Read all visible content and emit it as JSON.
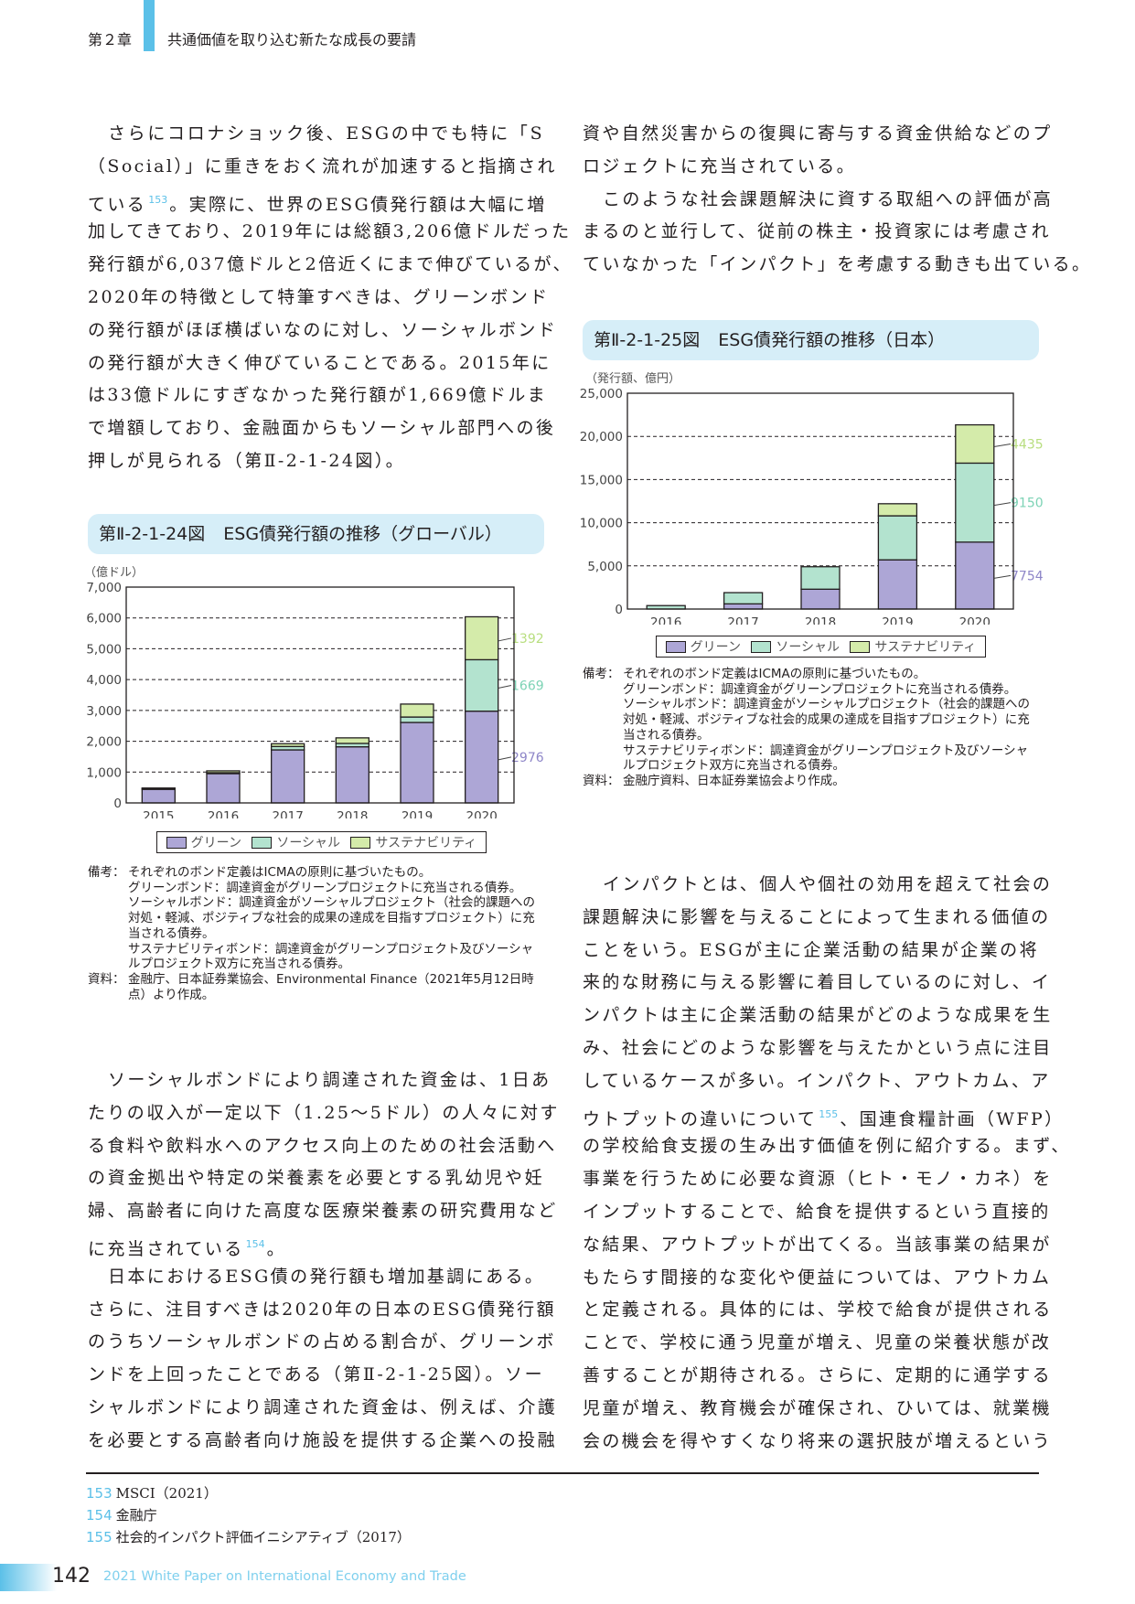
{
  "header": {
    "chapter": "第２章",
    "title": "共通価値を取り込む新たな成長の要請"
  },
  "colors": {
    "green": "#ada6d6",
    "social": "#b3e3cf",
    "sustainability": "#d4ebaa",
    "green_label": "#8e86c8",
    "social_label": "#7dd3b5",
    "sust_label": "#b8de7f",
    "accent": "#5bc0e8",
    "title_bg": "#d6eef8"
  },
  "body": {
    "left_top": [
      {
        "lines": [
          "さらにコロナショック後、ESGの中でも特に「S",
          "（Social）」に重きをおく流れが加速すると指摘され",
          {
            "pre": "ている",
            "sup": "153",
            "post": "。実際に、世界のESG債発行額は大幅に増"
          },
          "加してきており、2019年には総額3,206億ドルだった",
          "発行額が6,037億ドルと2倍近くにまで伸びているが、",
          "2020年の特徴として特筆すべきは、グリーンボンド",
          "の発行額がほぼ横ばいなのに対し、ソーシャルボンド",
          "の発行額が大きく伸びていることである。2015年に",
          "は33億ドルにすぎなかった発行額が1,669億ドルま",
          "で増額しており、金融面からもソーシャル部門への後",
          "押しが見られる（第Ⅱ-2-1-24図）。"
        ],
        "indent": true,
        "ends": true
      }
    ],
    "left_bottom": [
      {
        "lines": [
          "ソーシャルボンドにより調達された資金は、1日あ",
          "たりの収入が一定以下（1.25〜5ドル）の人々に対す",
          "る食料や飲料水へのアクセス向上のための社会活動へ",
          "の資金拠出や特定の栄養素を必要とする乳幼児や妊",
          "婦、高齢者に向けた高度な医療栄養素の研究費用など",
          {
            "pre": "に充当されている",
            "sup": "154",
            "post": "。"
          }
        ],
        "indent": true,
        "ends": true
      },
      {
        "lines": [
          "日本におけるESG債の発行額も増加基調にある。",
          "さらに、注目すべきは2020年の日本のESG債発行額",
          "のうちソーシャルボンドの占める割合が、グリーンボ",
          "ンドを上回ったことである（第Ⅱ-2-1-25図）。ソー",
          "シャルボンドにより調達された資金は、例えば、介護",
          "を必要とする高齢者向け施設を提供する企業への投融"
        ],
        "indent": true,
        "ends": false
      }
    ],
    "right_top": [
      {
        "lines": [
          "資や自然災害からの復興に寄与する資金供給などのプ",
          "ロジェクトに充当されている。"
        ],
        "indent": false,
        "ends": true
      },
      {
        "lines": [
          "このような社会課題解決に資する取組への評価が高",
          "まるのと並行して、従前の株主・投資家には考慮され",
          "ていなかった「インパクト」を考慮する動きも出ている。"
        ],
        "indent": true,
        "ends": false
      }
    ],
    "right_bottom": [
      {
        "lines": [
          "インパクトとは、個人や個社の効用を超えて社会の",
          "課題解決に影響を与えることによって生まれる価値の",
          "ことをいう。ESGが主に企業活動の結果が企業の将",
          "来的な財務に与える影響に着目しているのに対し、イ",
          "ンパクトは主に企業活動の結果がどのような成果を生",
          "み、社会にどのような影響を与えたかという点に注目",
          "しているケースが多い。インパクト、アウトカム、ア",
          {
            "pre": "ウトプットの違いについて",
            "sup": "155",
            "post": "、国連食糧計画（WFP）"
          },
          "の学校給食支援の生み出す価値を例に紹介する。まず、",
          "事業を行うために必要な資源（ヒト・モノ・カネ）を",
          "インプットすることで、給食を提供するという直接的",
          "な結果、アウトプットが出てくる。当該事業の結果が",
          "もたらす間接的な変化や便益については、アウトカム",
          "と定義される。具体的には、学校で給食が提供される",
          "ことで、学校に通う児童が増え、児童の栄養状態が改",
          "善することが期待される。さらに、定期的に通学する",
          "児童が増え、教育機会が確保され、ひいては、就業機",
          "会の機会を得やすくなり将来の選択肢が増えるという"
        ],
        "indent": true,
        "ends": false
      }
    ]
  },
  "fig24": {
    "number": "第Ⅱ-2-1-24図",
    "title": "ESG債発行額の推移（グローバル）",
    "notes_label": "備考：",
    "notes": [
      "それぞれのボンド定義はICMAの原則に基づいたもの。",
      "グリーンボンド：調達資金がグリーンプロジェクトに充当される債券。",
      "ソーシャルボンド：調達資金がソーシャルプロジェクト（社会的課題への対処・軽減、ポジティブな社会的成果の達成を目指すプロジェクト）に充当される債券。",
      "サステナビリティボンド：調達資金がグリーンプロジェクト及びソーシャルプロジェクト双方に充当される債券。"
    ],
    "source_label": "資料：",
    "source": "金融庁、日本証券業協会、Environmental Finance（2021年5月12日時点）より作成。"
  },
  "fig25": {
    "number": "第Ⅱ-2-1-25図",
    "title": "ESG債発行額の推移（日本）",
    "notes_label": "備考：",
    "notes": [
      "それぞれのボンド定義はICMAの原則に基づいたもの。",
      "グリーンボンド：調達資金がグリーンプロジェクトに充当される債券。",
      "ソーシャルボンド：調達資金がソーシャルプロジェクト（社会的課題への対処・軽減、ポジティブな社会的成果の達成を目指すプロジェクト）に充当される債券。",
      "サステナビリティボンド：調達資金がグリーンプロジェクト及びソーシャルプロジェクト双方に充当される債券。"
    ],
    "source_label": "資料：",
    "source": "金融庁資料、日本証券業協会より作成。"
  },
  "chart_data": [
    {
      "type": "bar",
      "stacked": true,
      "title": "ESG債発行額の推移（グローバル）",
      "ylabel": "（億ドル）",
      "xlabel": "",
      "ylim": [
        0,
        7000
      ],
      "yticks": [
        0,
        1000,
        2000,
        3000,
        4000,
        5000,
        6000,
        7000
      ],
      "ytick_labels": [
        "0",
        "1,000",
        "2,000",
        "3,000",
        "4,000",
        "5,000",
        "6,000",
        "7,000"
      ],
      "grid": "dashed horizontal",
      "categories": [
        "2015",
        "2016",
        "2017",
        "2018",
        "2019",
        "2020"
      ],
      "series": [
        {
          "name": "グリーン",
          "values": [
            440,
            950,
            1720,
            1820,
            2610,
            2976
          ]
        },
        {
          "name": "ソーシャル",
          "values": [
            33,
            30,
            110,
            110,
            176,
            1669
          ]
        },
        {
          "name": "サステナビリティ",
          "values": [
            10,
            60,
            90,
            180,
            420,
            1392
          ]
        }
      ],
      "data_labels": [
        "2976",
        "1669",
        "1392"
      ],
      "legend": "bottom"
    },
    {
      "type": "bar",
      "stacked": true,
      "title": "ESG債発行額の推移（日本）",
      "ylabel": "（発行額、億円）",
      "xlabel": "",
      "ylim": [
        0,
        25000
      ],
      "yticks": [
        0,
        5000,
        10000,
        15000,
        20000,
        25000
      ],
      "ytick_labels": [
        "0",
        "5,000",
        "10,000",
        "15,000",
        "20,000",
        "25,000"
      ],
      "grid": "dashed horizontal",
      "categories": [
        "2016",
        "2017",
        "2018",
        "2019",
        "2020"
      ],
      "series": [
        {
          "name": "グリーン",
          "values": [
            0,
            600,
            2300,
            5700,
            7754
          ]
        },
        {
          "name": "ソーシャル",
          "values": [
            400,
            1300,
            2600,
            5100,
            9150
          ]
        },
        {
          "name": "サステナビリティ",
          "values": [
            0,
            0,
            0,
            1400,
            4435
          ]
        }
      ],
      "data_labels": [
        "7754",
        "9150",
        "4435"
      ],
      "legend": "bottom"
    }
  ],
  "footnotes": [
    {
      "num": "153",
      "text": "MSCI（2021）"
    },
    {
      "num": "154",
      "text": "金融庁"
    },
    {
      "num": "155",
      "text": "社会的インパクト評価イニシアティブ（2017）"
    }
  ],
  "footer": {
    "page": "142",
    "title": "2021 White Paper on International Economy and Trade"
  }
}
